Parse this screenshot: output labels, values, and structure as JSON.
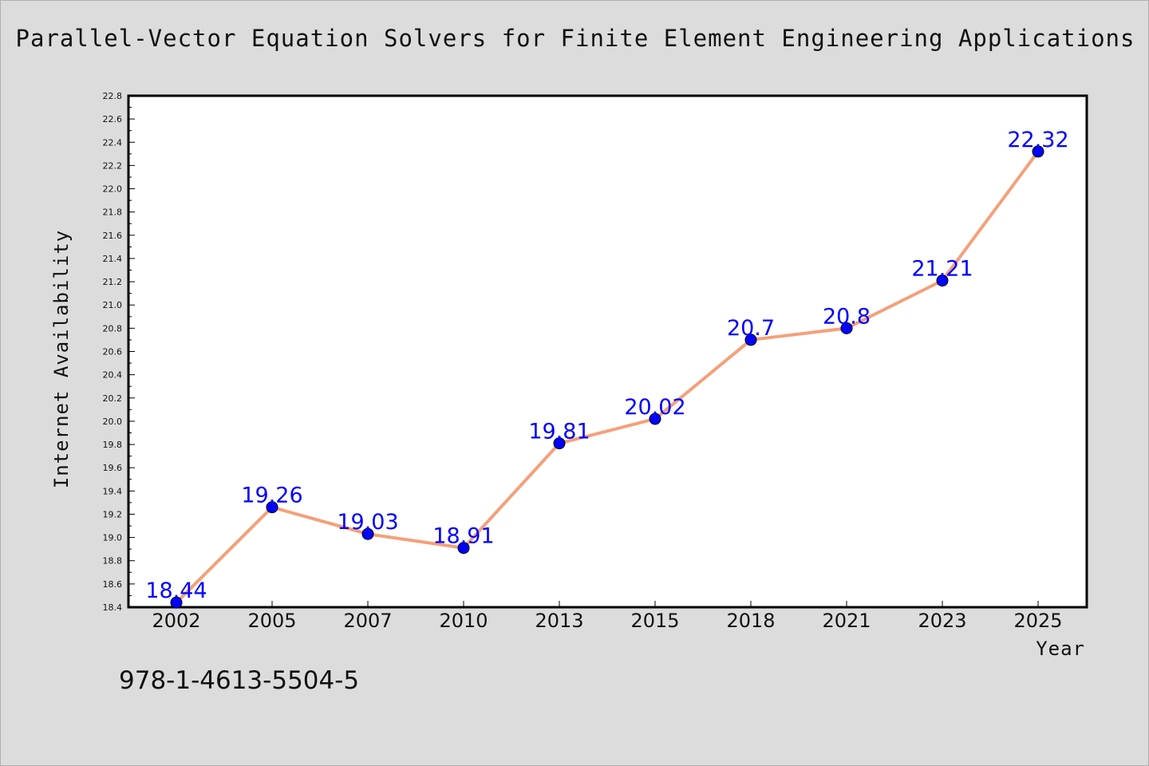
{
  "chart_data": {
    "type": "line",
    "title": "Parallel-Vector Equation Solvers for Finite Element Engineering Applications",
    "xlabel": "Year",
    "ylabel": "Internet Availability",
    "categories": [
      "2002",
      "2005",
      "2007",
      "2010",
      "2013",
      "2015",
      "2018",
      "2021",
      "2023",
      "2025"
    ],
    "series": [
      {
        "values": [
          18.44,
          19.26,
          19.03,
          18.91,
          19.81,
          20.02,
          20.7,
          20.8,
          21.21,
          22.32
        ],
        "data_labels": [
          "18.44",
          "19.26",
          "19.03",
          "18.91",
          "19.81",
          "20.02",
          "20.7",
          "20.8",
          "21.21",
          "22.32"
        ],
        "line_color": "#f4a07a",
        "marker_color": "#0000ff"
      }
    ],
    "ylim": [
      18.4,
      22.8
    ],
    "yticks": [
      "18.4",
      "18.6",
      "18.8",
      "19.0",
      "19.2",
      "19.4",
      "19.6",
      "19.8",
      "20.0",
      "20.2",
      "20.4",
      "20.6",
      "20.8",
      "21.0",
      "21.2",
      "21.4",
      "21.6",
      "21.8",
      "22.0",
      "22.2",
      "22.4",
      "22.6",
      "22.8"
    ],
    "grid": false,
    "legend": "none"
  },
  "footer": {
    "isbn": "978-1-4613-5504-5"
  },
  "colors": {
    "background": "#dcdcdc",
    "plot_background": "#ffffff",
    "line": "#f4a07a",
    "marker": "#0000ff",
    "data_label": "#0000ff"
  }
}
